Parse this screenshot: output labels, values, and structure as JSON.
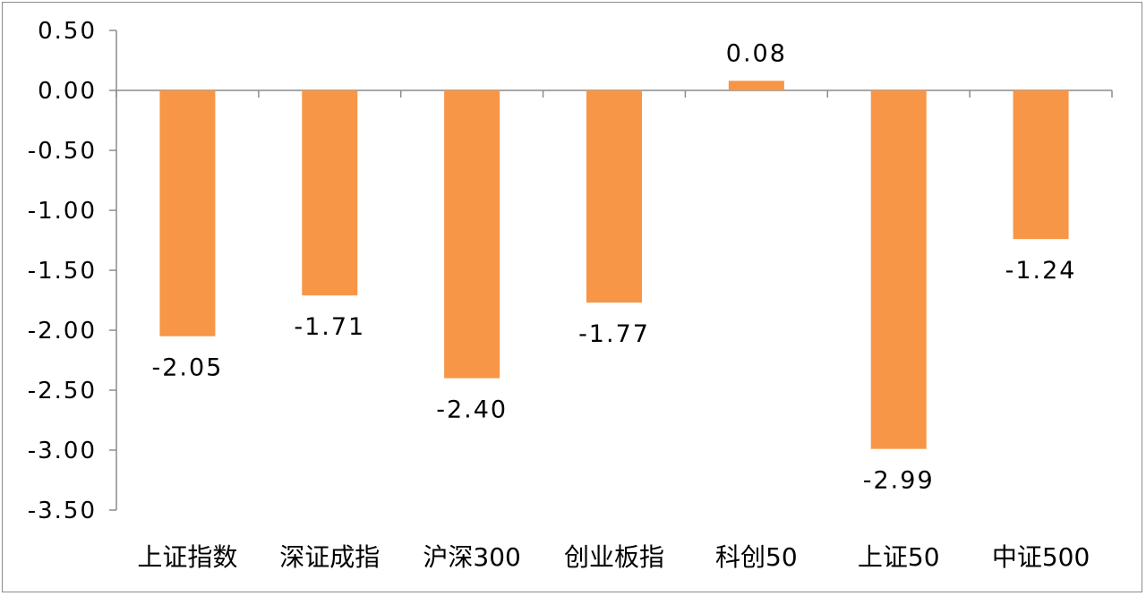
{
  "chart_data": {
    "type": "bar",
    "title": "",
    "xlabel": "",
    "ylabel": "",
    "categories": [
      "上证指数",
      "深证成指",
      "沪深300",
      "创业板指",
      "科创50",
      "上证50",
      "中证500"
    ],
    "values": [
      -2.05,
      -1.71,
      -2.4,
      -1.77,
      0.08,
      -2.99,
      -1.24
    ],
    "value_labels": [
      "-2.05",
      "-1.71",
      "-2.40",
      "-1.77",
      "0.08",
      "-2.99",
      "-1.24"
    ],
    "ylim": [
      -3.5,
      0.5
    ],
    "yticks": [
      0.5,
      0.0,
      -0.5,
      -1.0,
      -1.5,
      -2.0,
      -2.5,
      -3.0,
      -3.5
    ],
    "ytick_labels": [
      "0.50",
      "0.00",
      "-0.50",
      "-1.00",
      "-1.50",
      "-2.00",
      "-2.50",
      "-3.00",
      "-3.50"
    ],
    "bar_color": "#f79646",
    "axis_color": "#8c8c8c",
    "grid": false,
    "legend": "none"
  }
}
